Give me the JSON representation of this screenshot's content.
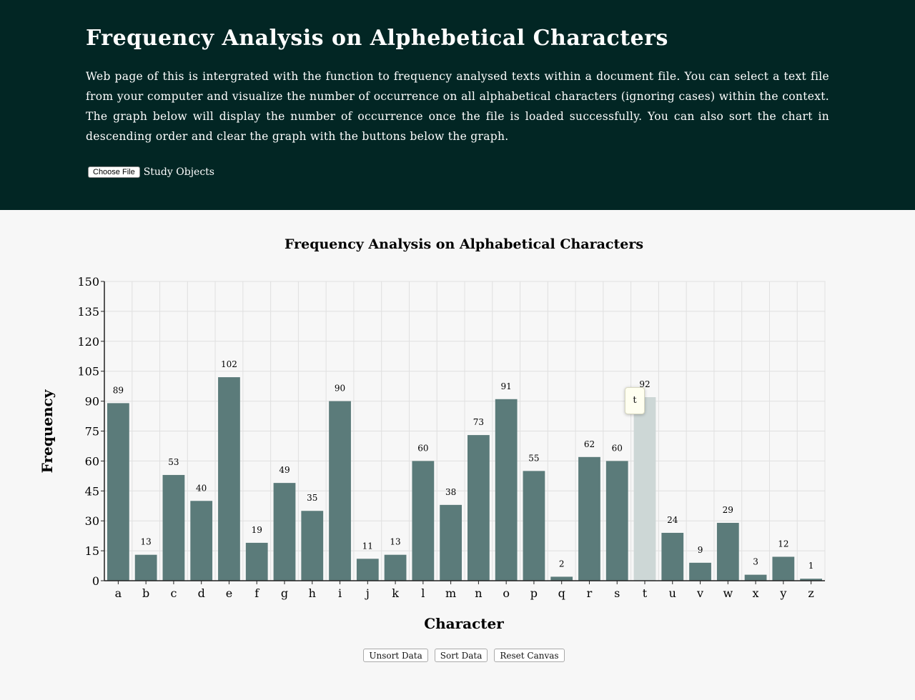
{
  "header": {
    "title": "Frequency Analysis on Alphebetical Characters",
    "description": "Web page of this is intergrated with the function to frequency analysed texts within a document file. You can select a text file from your computer and visualize the number of occurrence on all alphabetical characters (ignoring cases) within the context. The graph below will display the number of occurrence once the file is loaded successfully. You can also sort the chart in descending order and clear the graph with the buttons below the graph.",
    "choose_file_label": "Choose File",
    "file_name": "Study Objects"
  },
  "colors": {
    "header_bg": "#022624",
    "bar": "#5b7b7a",
    "bar_highlight": "#cdd7d6",
    "page_bg": "#f7f7f7"
  },
  "chart_data": {
    "type": "bar",
    "title": "Frequency Analysis on Alphabetical Characters",
    "xlabel": "Character",
    "ylabel": "Frequency",
    "ylim": [
      0,
      150
    ],
    "yticks": [
      0,
      15,
      30,
      45,
      60,
      75,
      90,
      105,
      120,
      135,
      150
    ],
    "grid": true,
    "categories": [
      "a",
      "b",
      "c",
      "d",
      "e",
      "f",
      "g",
      "h",
      "i",
      "j",
      "k",
      "l",
      "m",
      "n",
      "o",
      "p",
      "q",
      "r",
      "s",
      "t",
      "u",
      "v",
      "w",
      "x",
      "y",
      "z"
    ],
    "values": [
      89,
      13,
      53,
      40,
      102,
      19,
      49,
      35,
      90,
      11,
      13,
      60,
      38,
      73,
      91,
      55,
      2,
      62,
      60,
      92,
      24,
      9,
      29,
      3,
      12,
      1
    ],
    "highlighted": "t"
  },
  "tooltip": {
    "text": "t"
  },
  "buttons": {
    "unsort": "Unsort Data",
    "sort": "Sort Data",
    "reset": "Reset Canvas"
  }
}
